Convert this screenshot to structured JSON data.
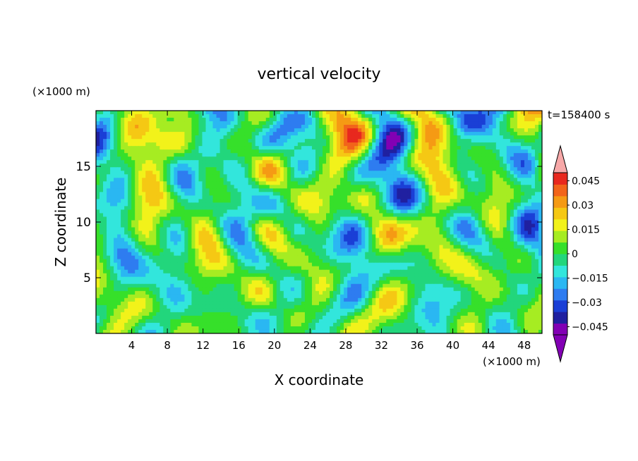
{
  "chart_data": {
    "type": "heatmap",
    "title": "vertical velocity",
    "xlabel": "X coordinate",
    "ylabel": "Z coordinate",
    "x_unit": "(×1000 m)",
    "y_unit": "(×1000 m)",
    "time_label": "t=158400 s",
    "xlim": [
      0,
      50
    ],
    "ylim": [
      0,
      20
    ],
    "x_ticks": [
      4,
      8,
      12,
      16,
      20,
      24,
      28,
      32,
      36,
      40,
      44,
      48
    ],
    "y_ticks": [
      5,
      10,
      15
    ],
    "colorbar": {
      "min": -0.05,
      "max": 0.05,
      "step": 0.0075,
      "tick_values": [
        0.045,
        0.03,
        0.015,
        0,
        -0.015,
        -0.03,
        -0.045
      ],
      "tick_labels": [
        "0.045",
        "0.03",
        "0.015",
        "0",
        "−0.015",
        "−0.03",
        "−0.045"
      ],
      "colors": [
        "#8200b4",
        "#2020a0",
        "#1a3fd6",
        "#2e7cf0",
        "#2ab7f2",
        "#32e6dc",
        "#22d67c",
        "#36e02a",
        "#a6ec22",
        "#f2f21a",
        "#f5c814",
        "#f59a14",
        "#f2641a",
        "#e8281e"
      ],
      "over_color": "#f7a8a8",
      "under_color": "#8200b4"
    }
  }
}
